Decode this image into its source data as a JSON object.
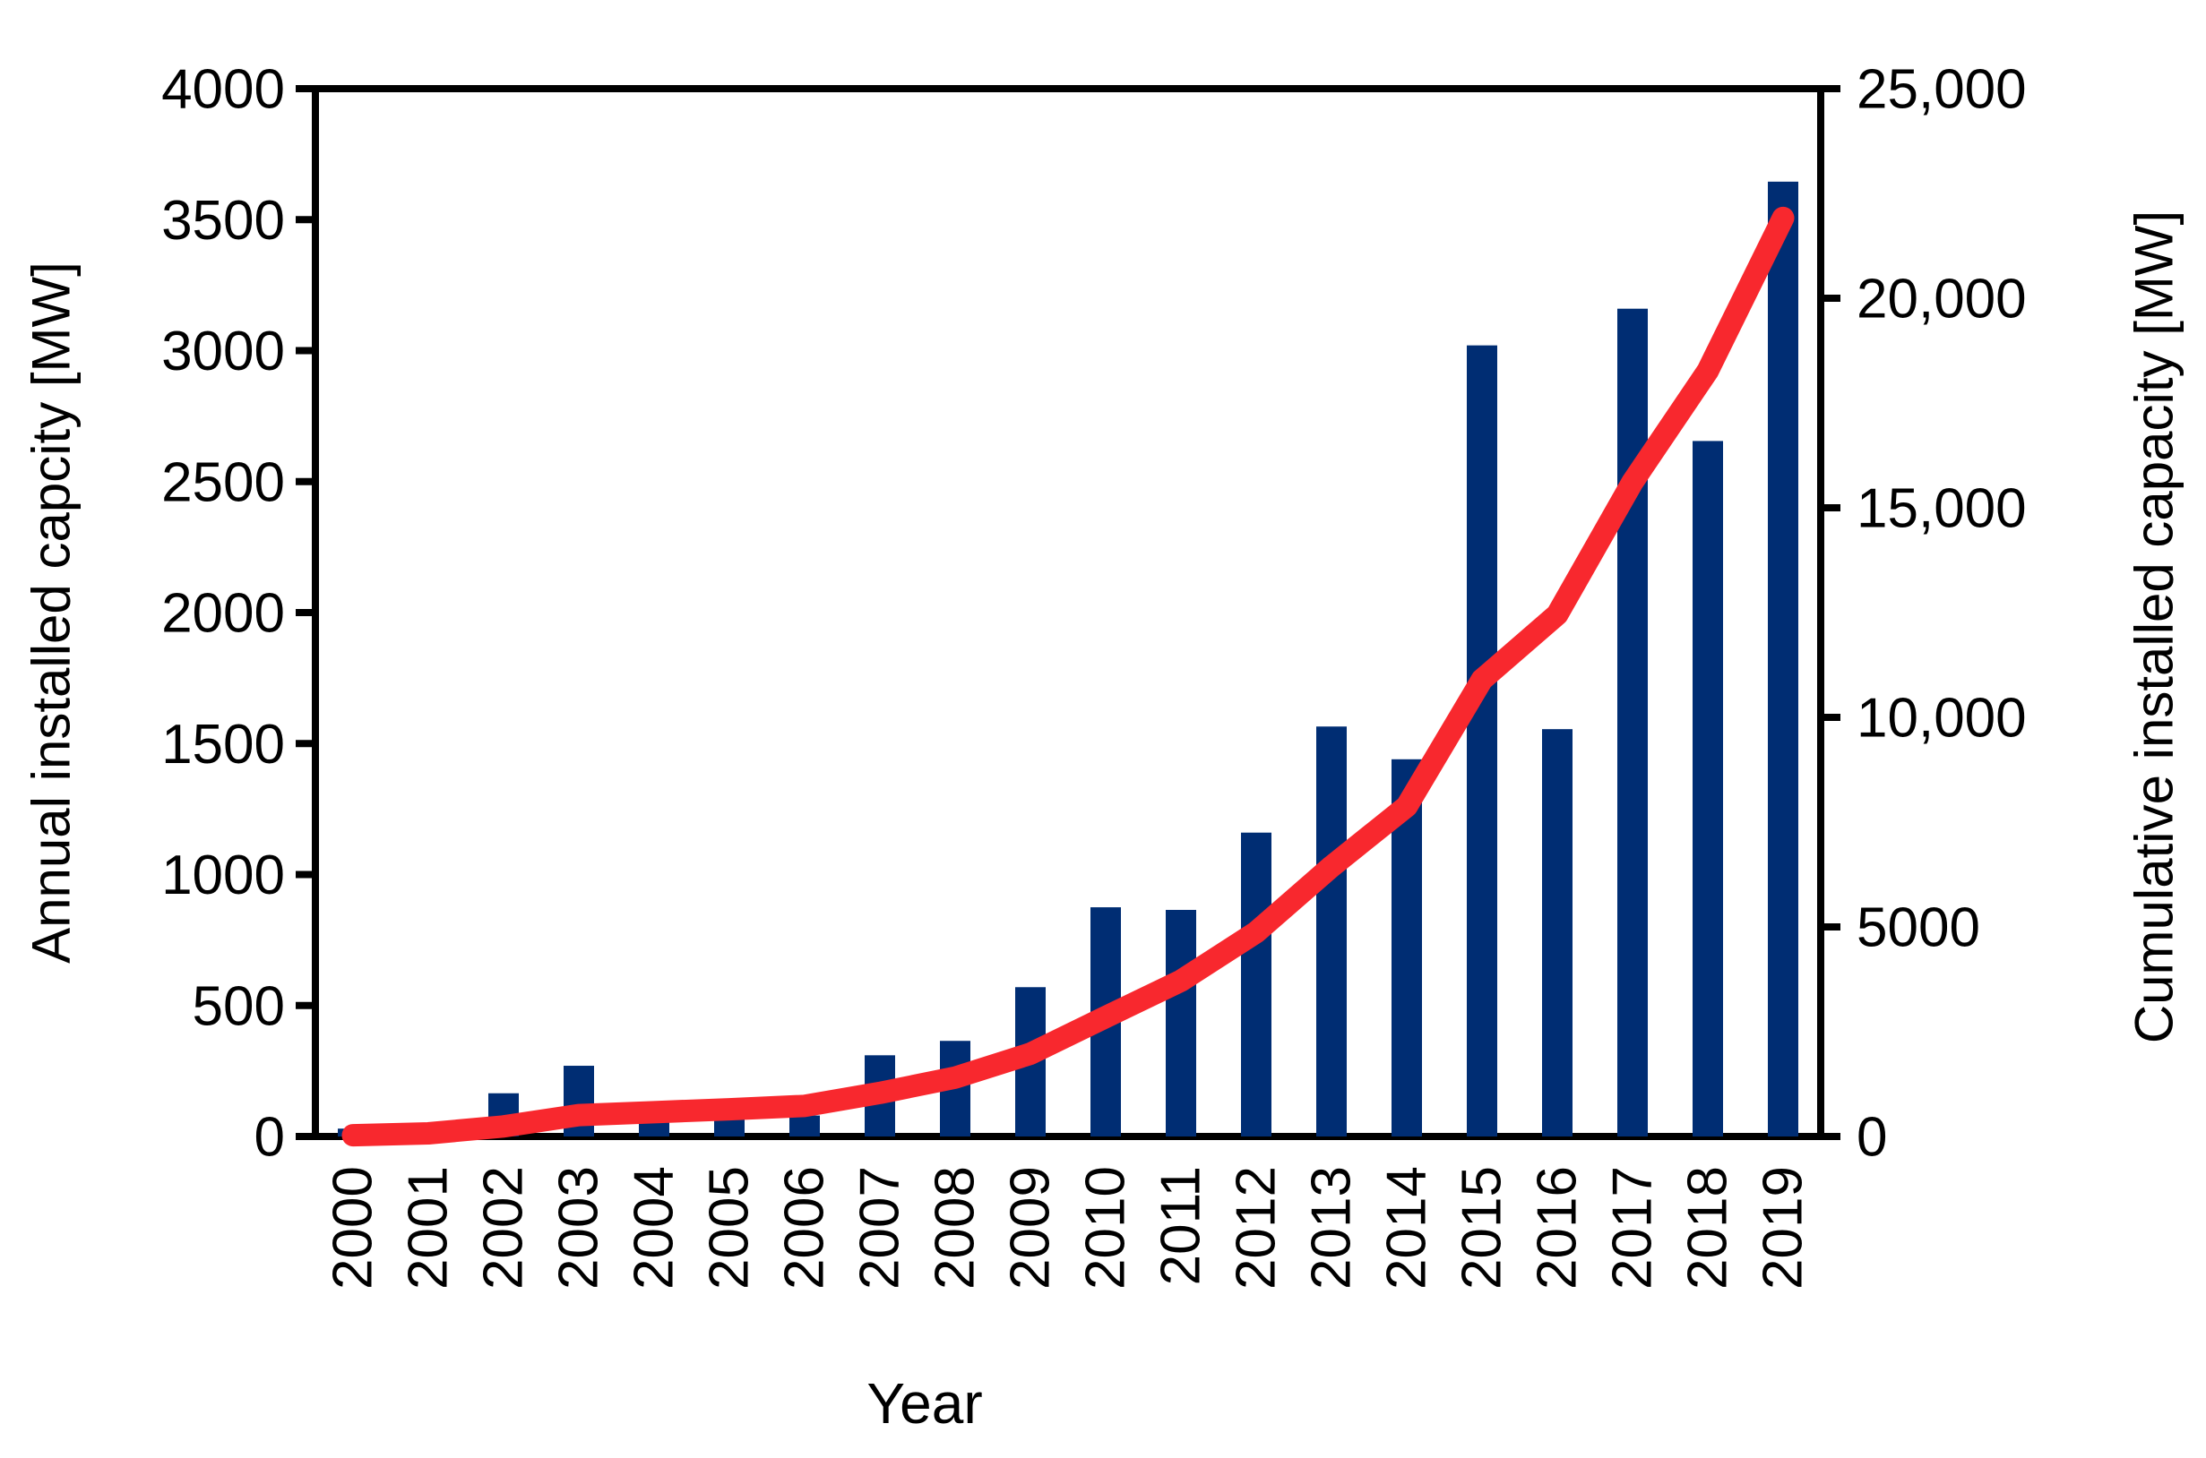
{
  "chart_data": {
    "type": "bar",
    "title": "",
    "xlabel": "Year",
    "ylabel_left": "Annual installed capcity [MW]",
    "ylabel_right": "Cumulative installed capacity [MW]",
    "categories": [
      "2000",
      "2001",
      "2002",
      "2003",
      "2004",
      "2005",
      "2006",
      "2007",
      "2008",
      "2009",
      "2010",
      "2011",
      "2012",
      "2013",
      "2014",
      "2015",
      "2016",
      "2017",
      "2018",
      "2019"
    ],
    "series": [
      {
        "name": "Annual installed capacity",
        "type": "bar",
        "yaxis": "left",
        "color": "#002D73",
        "values": [
          30,
          45,
          165,
          270,
          70,
          70,
          80,
          310,
          365,
          570,
          875,
          865,
          1160,
          1565,
          1440,
          3020,
          1555,
          3160,
          2655,
          3645
        ]
      },
      {
        "name": "Cumulative installed capacity",
        "type": "line",
        "yaxis": "right",
        "color": "#F8282E",
        "values": [
          30,
          75,
          240,
          510,
          580,
          650,
          730,
          1040,
          1405,
          1975,
          2850,
          3715,
          4875,
          6440,
          7880,
          10900,
          12455,
          15615,
          18270,
          21915
        ]
      }
    ],
    "ylim_left": [
      0,
      4000
    ],
    "ylim_right": [
      0,
      25000
    ],
    "yticks_left": {
      "values": [
        0,
        500,
        1000,
        1500,
        2000,
        2500,
        3000,
        3500,
        4000
      ],
      "labels": [
        "0",
        "500",
        "1000",
        "1500",
        "2000",
        "2500",
        "3000",
        "3500",
        "4000"
      ]
    },
    "yticks_right": {
      "values": [
        0,
        5000,
        10000,
        15000,
        20000,
        25000
      ],
      "labels": [
        "0",
        "5000",
        "10,000",
        "15,000",
        "20,000",
        "25,000"
      ]
    },
    "grid": false,
    "legend": "none",
    "axis_color": "#000000",
    "background": "#FFFFFF"
  }
}
